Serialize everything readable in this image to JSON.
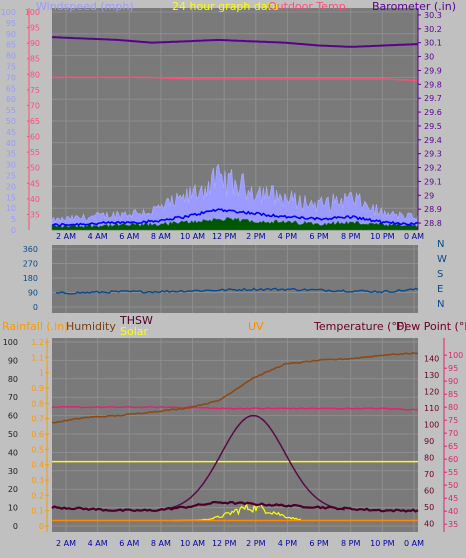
{
  "colors": {
    "panel_bg": "#7a7a7a",
    "page_bg": "#c0c0c0",
    "grid": "#8e8e8e",
    "wind_speed": "#9a9aff",
    "wind_gust": "#0000ff",
    "wind_dark": "#005500",
    "barometer": "#5a0090",
    "outdoor_temp": "#ff4c7a",
    "wind_dir": "#0a4a8a",
    "rainfall": "#ff9900",
    "humidity": "#7a3e10",
    "thsw": "#4a0028",
    "solar": "#ffff00",
    "uv": "#ff8800",
    "temperature": "#6a0020",
    "dewpoint": "#e0246e"
  },
  "chart_data": [
    {
      "type": "line",
      "title": "24 hour graph data",
      "x_ticks": [
        "2 AM",
        "4 AM",
        "6 AM",
        "8 AM",
        "10 AM",
        "12 PM",
        "2 PM",
        "4 PM",
        "6 PM",
        "8 PM",
        "10 PM",
        "0 AM"
      ],
      "left_axis": {
        "label": "Windspeed (mph)",
        "ticks": [
          0,
          5,
          10,
          15,
          20,
          25,
          30,
          35,
          40,
          45,
          50,
          55,
          60,
          65,
          70,
          75,
          80,
          85,
          90,
          95,
          100
        ],
        "range": [
          0,
          100
        ]
      },
      "pink_axis": {
        "ticks": [
          35,
          40,
          45,
          50,
          55,
          60,
          65,
          70,
          75,
          80,
          85,
          90,
          95,
          100
        ],
        "range": [
          30,
          100
        ]
      },
      "right_axis": {
        "label": "Barometer (.in)",
        "ticks": [
          "28.8",
          "28.9",
          "29",
          "29.1",
          "29.2",
          "29.3",
          "29.4",
          "29.5",
          "29.6",
          "29.7",
          "29.8",
          "29.9",
          "30",
          "30.1",
          "30.2",
          "30.3"
        ],
        "range": [
          28.75,
          30.35
        ]
      },
      "legend_overlay": [
        "Outdoor Temp."
      ],
      "series": [
        {
          "name": "Barometer (.in)",
          "values": [
            30.14,
            30.13,
            30.12,
            30.1,
            30.11,
            30.12,
            30.11,
            30.1,
            30.08,
            30.07,
            30.08,
            30.09
          ]
        },
        {
          "name": "Outdoor Temp.",
          "values": [
            79,
            79,
            79,
            79,
            78.5,
            78.5,
            78.5,
            78.5,
            78.5,
            78.5,
            78.5,
            78
          ]
        },
        {
          "name": "Windspeed (mph)",
          "values": [
            3,
            4,
            5,
            6,
            10,
            16,
            13,
            10,
            8,
            10,
            5,
            4
          ]
        }
      ]
    },
    {
      "type": "line",
      "left_axis": {
        "ticks": [
          0,
          90,
          180,
          270,
          360
        ],
        "range": [
          0,
          360
        ]
      },
      "right_axis_labels": [
        "N",
        "W",
        "S",
        "E",
        "N"
      ],
      "series": [
        {
          "values": [
            85,
            90,
            95,
            95,
            100,
            105,
            110,
            110,
            105,
            100,
            95,
            110
          ]
        }
      ],
      "x_ticks": [
        "2 AM",
        "4 AM",
        "6 AM",
        "8 AM",
        "10 AM",
        "12 PM",
        "2 PM",
        "4 PM",
        "6 PM",
        "8 PM",
        "10 PM",
        "0 AM"
      ]
    },
    {
      "type": "line",
      "x_ticks": [
        "2 AM",
        "4 AM",
        "6 AM",
        "8 AM",
        "10 AM",
        "12 PM",
        "2 PM",
        "4 PM",
        "6 PM",
        "8 PM",
        "10 PM",
        "0 AM"
      ],
      "legend": [
        "Rainfall (.in)",
        "Humidity",
        "THSW",
        "Solar",
        "UV",
        "Temperature (°F)",
        "Dew Point (°F)"
      ],
      "humidity_axis": {
        "ticks": [
          0,
          10,
          20,
          30,
          40,
          50,
          60,
          70,
          80,
          90,
          100
        ],
        "range": [
          0,
          100
        ]
      },
      "rain_axis": {
        "ticks": [
          "0",
          "0.1",
          "0.2",
          "0.3",
          "0.4",
          "0.5",
          "0.6",
          "0.7",
          "0.8",
          "0.9",
          "1",
          "1.1",
          "1.2"
        ],
        "range": [
          0,
          1.2
        ]
      },
      "temp_axis": {
        "ticks": [
          40,
          50,
          60,
          70,
          80,
          90,
          100,
          110,
          120,
          130,
          140
        ],
        "range": [
          35,
          145
        ]
      },
      "dew_axis": {
        "ticks": [
          35,
          40,
          45,
          50,
          55,
          60,
          65,
          70,
          75,
          80,
          85,
          90,
          95,
          100
        ],
        "range": [
          32,
          102
        ]
      },
      "series": [
        {
          "name": "Humidity",
          "values": [
            56,
            59,
            60,
            62,
            64,
            68,
            80,
            88,
            90,
            91,
            93,
            94
          ]
        },
        {
          "name": "Dew Point (°F)",
          "values": [
            80,
            80,
            80,
            80,
            80,
            79.5,
            79.5,
            79.5,
            79.5,
            79.5,
            79.5,
            79
          ]
        },
        {
          "name": "Rainfall (.in)",
          "values": [
            0.42,
            0.42,
            0.42,
            0.42,
            0.42,
            0.42,
            0.42,
            0.42,
            0.42,
            0.42,
            0.42,
            0.42
          ]
        },
        {
          "name": "Temperature (°F)",
          "values": [
            50,
            49,
            48,
            48,
            50,
            53,
            52,
            51,
            50,
            49,
            48,
            48
          ]
        }
      ]
    }
  ]
}
